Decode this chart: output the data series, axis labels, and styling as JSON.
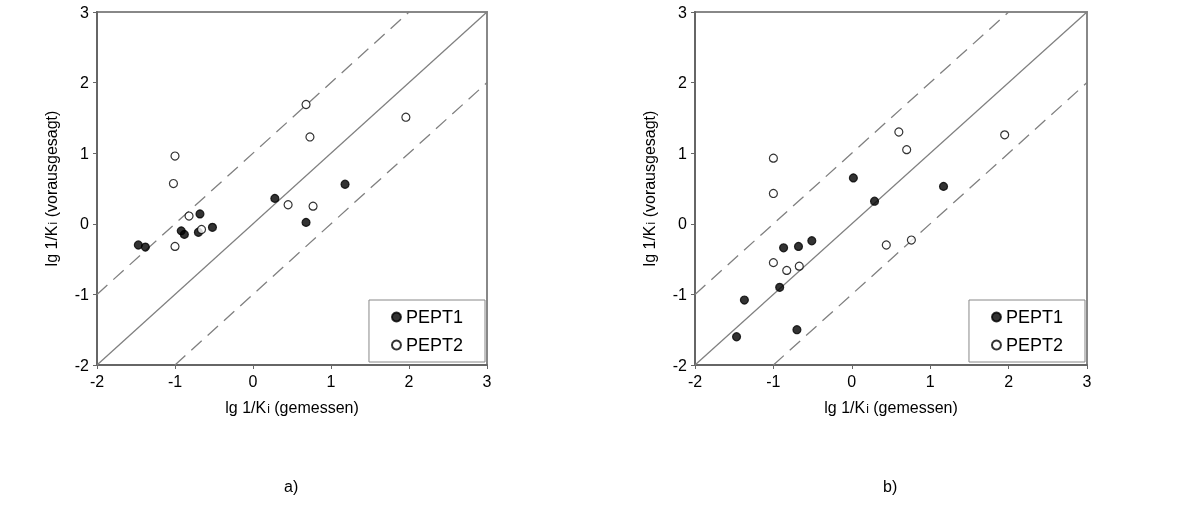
{
  "chart_data": [
    {
      "type": "scatter",
      "xlabel": "lg 1/K$_{i}$ (gemessen)",
      "ylabel": "lg 1/K$_{i}$ (vorausgesagt)",
      "xlim": [
        -2,
        3
      ],
      "ylim": [
        -2,
        3
      ],
      "xticks": [
        -2,
        -1,
        0,
        1,
        2,
        3
      ],
      "yticks": [
        -2,
        -1,
        0,
        1,
        2,
        3
      ],
      "grid": false,
      "legend": "bottom right",
      "marker": "circle",
      "annotations": [
        "a)"
      ],
      "series": [
        {
          "name": "PEPT1",
          "color": "#000000",
          "x": [
            -1.47,
            -1.38,
            -0.92,
            -0.88,
            -0.68,
            -0.7,
            -0.52,
            0.28,
            0.68,
            1.18
          ],
          "values": [
            -0.3,
            -0.33,
            -0.1,
            -0.15,
            0.14,
            -0.12,
            -0.05,
            0.36,
            0.02,
            0.56
          ]
        },
        {
          "name": "PEPT2",
          "color": "#ffffff",
          "x": [
            -1.0,
            -1.02,
            -0.82,
            -0.66,
            -1.0,
            0.45,
            0.68,
            0.73,
            0.77,
            1.96
          ],
          "values": [
            0.96,
            0.57,
            0.11,
            -0.08,
            -0.32,
            0.27,
            1.69,
            1.23,
            0.25,
            1.51
          ]
        },
        {
          "type": "line",
          "color": "#808080",
          "line_style": "solid",
          "marker": "none",
          "x": [
            -2,
            3
          ],
          "values": [
            -2,
            3
          ]
        },
        {
          "type": "line",
          "color": "#808080",
          "line_style": "dashed",
          "marker": "none",
          "x": [
            -2,
            2
          ],
          "values": [
            -1,
            3
          ]
        },
        {
          "type": "line",
          "color": "#808080",
          "line_style": "dashed",
          "marker": "none",
          "x": [
            -1,
            3
          ],
          "values": [
            -2,
            2
          ]
        }
      ]
    },
    {
      "type": "scatter",
      "xlabel": "lg 1/K$_{i}$ (gemessen)",
      "ylabel": "lg 1/K$_{i}$ (vorausgesagt)",
      "xlim": [
        -2,
        3
      ],
      "ylim": [
        -2,
        3
      ],
      "xticks": [
        -2,
        -1,
        0,
        1,
        2,
        3
      ],
      "yticks": [
        -2,
        -1,
        0,
        1,
        2,
        3
      ],
      "grid": false,
      "legend": "bottom right",
      "marker": "circle",
      "annotations": [
        "b)"
      ],
      "series": [
        {
          "name": "PEPT1",
          "color": "#000000",
          "x": [
            -1.47,
            -1.37,
            -0.92,
            -0.87,
            -0.68,
            -0.51,
            -0.7,
            0.02,
            0.29,
            1.17
          ],
          "values": [
            -1.6,
            -1.08,
            -0.9,
            -0.34,
            -0.32,
            -0.24,
            -1.5,
            0.65,
            0.32,
            0.53
          ]
        },
        {
          "name": "PEPT2",
          "color": "#ffffff",
          "x": [
            -1.0,
            -1.0,
            -1.0,
            -0.83,
            -0.67,
            0.44,
            0.6,
            0.7,
            0.76,
            1.95
          ],
          "values": [
            0.93,
            0.43,
            -0.55,
            -0.66,
            -0.6,
            -0.3,
            1.3,
            1.05,
            -0.23,
            1.26
          ]
        },
        {
          "type": "line",
          "color": "#808080",
          "line_style": "solid",
          "marker": "none",
          "x": [
            -2,
            3
          ],
          "values": [
            -2,
            3
          ]
        },
        {
          "type": "line",
          "color": "#808080",
          "line_style": "dashed",
          "marker": "none",
          "x": [
            -2,
            2
          ],
          "values": [
            -1,
            3
          ]
        },
        {
          "type": "line",
          "color": "#808080",
          "line_style": "dashed",
          "marker": "none",
          "x": [
            -1,
            3
          ],
          "values": [
            -2,
            2
          ]
        }
      ]
    }
  ]
}
